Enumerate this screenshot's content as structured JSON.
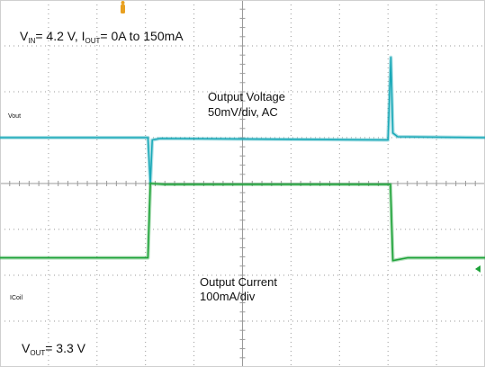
{
  "annotations": {
    "vin_v": "V",
    "vin_sub": "IN",
    "vin_val": "= 4.2 V,  ",
    "iout_i": "I",
    "iout_sub": "OUT",
    "iout_val": "= 0A to 150mA",
    "vout_v": "V",
    "vout_sub": "OUT",
    "vout_val": "= 3.3 V",
    "ch1_label_line1": "Output Voltage",
    "ch1_label_line2": "50mV/div, AC",
    "ch2_label_line1": "Output Current",
    "ch2_label_line2": "100mA/div",
    "ch1_marker": "Vout",
    "ch2_marker": "ICoil"
  },
  "colors": {
    "vout_trace": "#1aa9b8",
    "icoil_trace": "#1fa33a",
    "grid": "#9a9a9a",
    "trigger_marker": "#e8a020"
  },
  "chart_data": {
    "type": "line",
    "grid": true,
    "divisions": {
      "x": 10,
      "y": 8
    },
    "series": [
      {
        "name": "Vout",
        "units": "div",
        "x": [
          0,
          3.05,
          3.1,
          3.14,
          3.3,
          8.0,
          8.06,
          8.1,
          8.2,
          10
        ],
        "y": [
          1.0,
          1.0,
          0.0,
          0.95,
          0.98,
          0.95,
          2.75,
          1.1,
          1.02,
          1.0
        ]
      },
      {
        "name": "ICoil",
        "units": "div",
        "x": [
          0,
          3.05,
          3.1,
          3.4,
          8.05,
          8.1,
          8.4,
          10
        ],
        "y": [
          -1.62,
          -1.62,
          0.0,
          -0.02,
          -0.02,
          -1.68,
          -1.62,
          -1.62
        ]
      }
    ]
  }
}
